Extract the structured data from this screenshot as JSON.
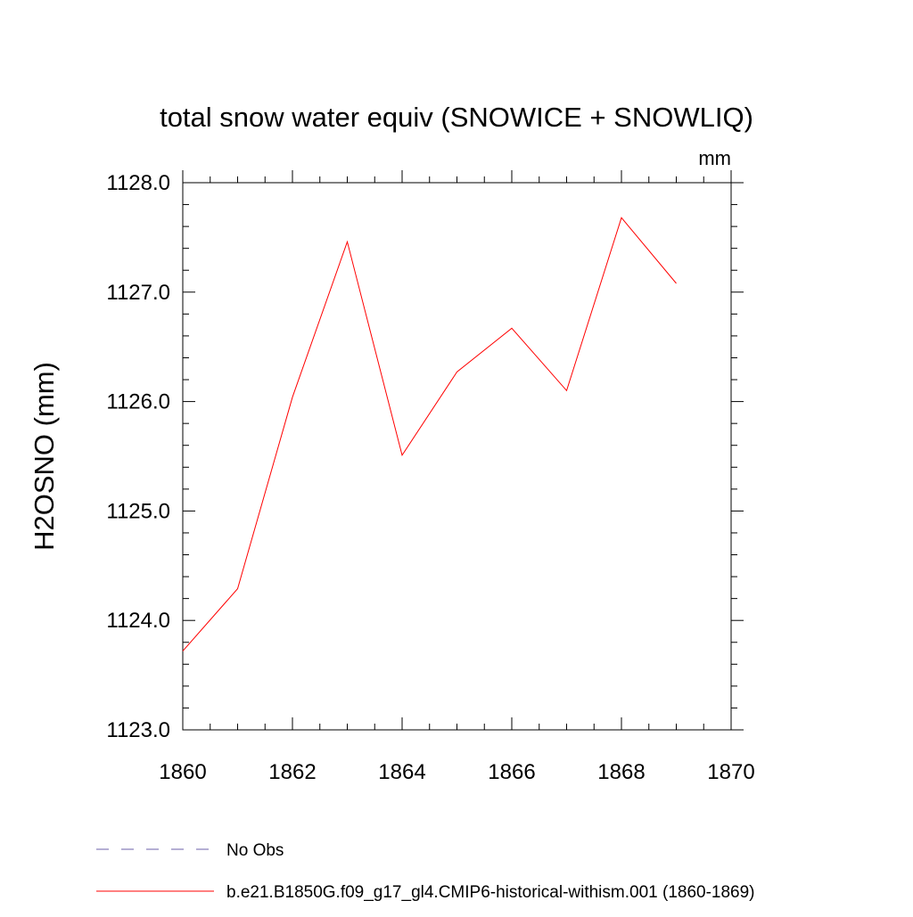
{
  "chart_data": {
    "type": "line",
    "title": "total snow water equiv (SNOWICE + SNOWLIQ)",
    "units_label": "mm",
    "ylabel": "H2OSNO  (mm)",
    "xlabel": "",
    "xlim": [
      1860,
      1870
    ],
    "ylim": [
      1123.0,
      1128.0
    ],
    "x_ticks": [
      1860,
      1862,
      1864,
      1866,
      1868,
      1870
    ],
    "x_tick_labels": [
      "1860",
      "1862",
      "1864",
      "1866",
      "1868",
      "1870"
    ],
    "y_ticks": [
      1123.0,
      1124.0,
      1125.0,
      1126.0,
      1127.0,
      1128.0
    ],
    "y_tick_labels": [
      "1123.0",
      "1124.0",
      "1125.0",
      "1126.0",
      "1127.0",
      "1128.0"
    ],
    "grid": false,
    "legend_position": "bottom-left",
    "series": [
      {
        "name": "b.e21.B1850G.f09_g17_gl4.CMIP6-historical-withism.001 (1860-1869)",
        "color": "#ff0000",
        "style": "solid",
        "x": [
          1860,
          1861,
          1862,
          1863,
          1864,
          1865,
          1866,
          1867,
          1868,
          1869
        ],
        "y": [
          1123.72,
          1124.29,
          1126.04,
          1127.46,
          1125.51,
          1126.27,
          1126.67,
          1126.1,
          1127.68,
          1127.08
        ]
      }
    ],
    "legend": [
      {
        "label": "No Obs",
        "color": "#6b5fa8",
        "style": "dashed"
      },
      {
        "label": "b.e21.B1850G.f09_g17_gl4.CMIP6-historical-withism.001 (1860-1869)",
        "color": "#ff0000",
        "style": "solid"
      }
    ]
  }
}
